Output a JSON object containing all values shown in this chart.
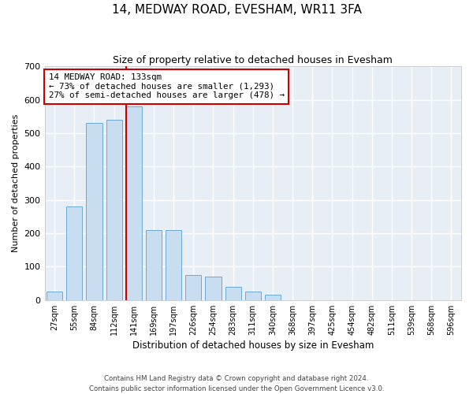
{
  "title": "14, MEDWAY ROAD, EVESHAM, WR11 3FA",
  "subtitle": "Size of property relative to detached houses in Evesham",
  "xlabel": "Distribution of detached houses by size in Evesham",
  "ylabel": "Number of detached properties",
  "bar_color": "#c8ddf0",
  "bar_edge_color": "#6aaad4",
  "background_color": "#e8eef6",
  "grid_color": "#ffffff",
  "categories": [
    "27sqm",
    "55sqm",
    "84sqm",
    "112sqm",
    "141sqm",
    "169sqm",
    "197sqm",
    "226sqm",
    "254sqm",
    "283sqm",
    "311sqm",
    "340sqm",
    "368sqm",
    "397sqm",
    "425sqm",
    "454sqm",
    "482sqm",
    "511sqm",
    "539sqm",
    "568sqm",
    "596sqm"
  ],
  "values": [
    25,
    280,
    530,
    540,
    580,
    210,
    210,
    75,
    70,
    40,
    25,
    15,
    0,
    0,
    0,
    0,
    0,
    0,
    0,
    0,
    0
  ],
  "ylim": [
    0,
    700
  ],
  "yticks": [
    0,
    100,
    200,
    300,
    400,
    500,
    600,
    700
  ],
  "property_line_color": "#cc0000",
  "annotation_text": "14 MEDWAY ROAD: 133sqm\n← 73% of detached houses are smaller (1,293)\n27% of semi-detached houses are larger (478) →",
  "annotation_box_color": "#cc0000",
  "footnote": "Contains HM Land Registry data © Crown copyright and database right 2024.\nContains public sector information licensed under the Open Government Licence v3.0."
}
